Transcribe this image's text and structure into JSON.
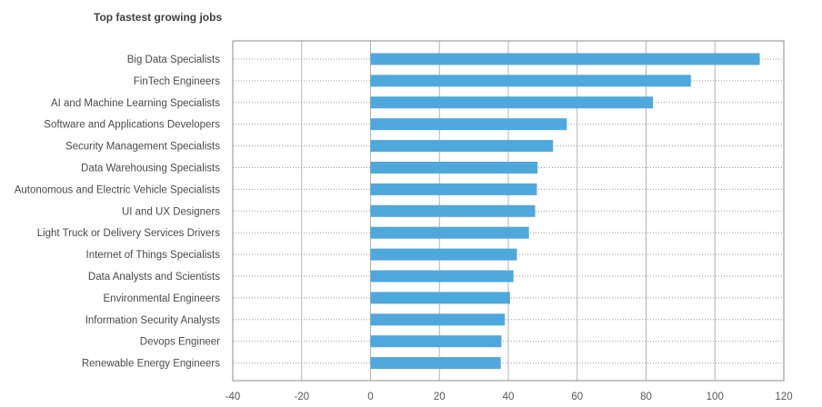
{
  "chart_data": {
    "type": "bar",
    "orientation": "horizontal",
    "title": "Top fastest growing jobs",
    "xlabel": "",
    "ylabel": "",
    "categories": [
      "Big Data Specialists",
      "FinTech Engineers",
      "AI and Machine Learning Specialists",
      "Software and Applications Developers",
      "Security Management Specialists",
      "Data Warehousing Specialists",
      "Autonomous and Electric Vehicle Specialists",
      "UI and UX Designers",
      "Light Truck or Delivery Services Drivers",
      "Internet of Things Specialists",
      "Data Analysts and Scientists",
      "Environmental Engineers",
      "Information Security Analysts",
      "Devops Engineer",
      "Renewable Energy Engineers"
    ],
    "values": [
      113,
      93,
      82,
      57,
      53,
      48.5,
      48.3,
      47.8,
      46,
      42.5,
      41.5,
      40.5,
      39,
      38,
      37.8
    ],
    "xlim": [
      -40,
      120
    ],
    "xticks": [
      "-40",
      "-20",
      "0",
      "20",
      "40",
      "60",
      "80",
      "100",
      "120"
    ],
    "grid": true,
    "legend": "none",
    "bar_color": "#4fa8dc",
    "grid_color": "#b5b5b5",
    "frame_color": "#8c8c8c"
  }
}
